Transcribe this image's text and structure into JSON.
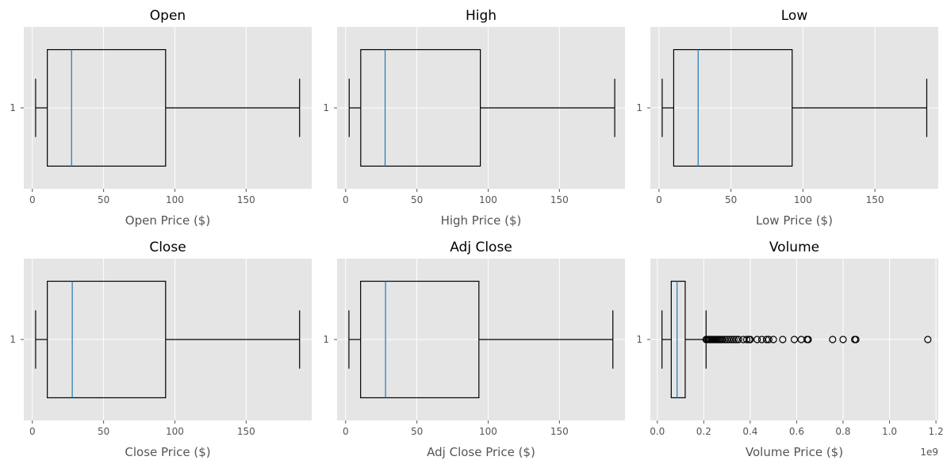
{
  "chart_data": [
    {
      "type": "boxplot",
      "title": "Open",
      "xlabel": "Open Price ($)",
      "category_label": "1",
      "xlim": [
        -6,
        196
      ],
      "xticks": [
        0,
        50,
        100,
        150
      ],
      "stats": {
        "whislo": 2.3,
        "q1": 10.5,
        "med": 27.5,
        "q3": 93.5,
        "whishi": 187.5
      },
      "fliers": []
    },
    {
      "type": "boxplot",
      "title": "High",
      "xlabel": "High Price ($)",
      "category_label": "1",
      "xlim": [
        -6,
        196
      ],
      "xticks": [
        0,
        50,
        100,
        150
      ],
      "stats": {
        "whislo": 2.5,
        "q1": 10.6,
        "med": 27.7,
        "q3": 94.5,
        "whishi": 188.8
      },
      "fliers": []
    },
    {
      "type": "boxplot",
      "title": "Low",
      "xlabel": "Low Price ($)",
      "category_label": "1",
      "xlim": [
        -6,
        194
      ],
      "xticks": [
        0,
        50,
        100,
        150
      ],
      "stats": {
        "whislo": 2.2,
        "q1": 10.2,
        "med": 27.2,
        "q3": 92.5,
        "whishi": 186.0
      },
      "fliers": []
    },
    {
      "type": "boxplot",
      "title": "Close",
      "xlabel": "Close Price ($)",
      "category_label": "1",
      "xlim": [
        -6,
        196
      ],
      "xticks": [
        0,
        50,
        100,
        150
      ],
      "stats": {
        "whislo": 2.3,
        "q1": 10.5,
        "med": 28.0,
        "q3": 93.5,
        "whishi": 187.5
      },
      "fliers": []
    },
    {
      "type": "boxplot",
      "title": "Adj Close",
      "xlabel": "Adj Close Price ($)",
      "category_label": "1",
      "xlim": [
        -6,
        196
      ],
      "xticks": [
        0,
        50,
        100,
        150
      ],
      "stats": {
        "whislo": 2.3,
        "q1": 10.5,
        "med": 28.0,
        "q3": 93.5,
        "whishi": 187.5
      },
      "fliers": []
    },
    {
      "type": "boxplot",
      "title": "Volume",
      "xlabel": "Volume Price ($)",
      "category_label": "1",
      "offset_text": "1e9",
      "xlim": [
        -0.03,
        1.21
      ],
      "xticks": [
        0.0,
        0.2,
        0.4,
        0.6,
        0.8,
        1.0,
        1.2
      ],
      "xticklabels": [
        "0.0",
        "0.2",
        "0.4",
        "0.6",
        "0.8",
        "1.0",
        "1.2"
      ],
      "stats": {
        "whislo": 0.02,
        "q1": 0.06,
        "med": 0.085,
        "q3": 0.12,
        "whishi": 0.21
      },
      "fliers": [
        0.21,
        0.215,
        0.22,
        0.225,
        0.23,
        0.235,
        0.24,
        0.245,
        0.25,
        0.255,
        0.26,
        0.265,
        0.27,
        0.275,
        0.28,
        0.29,
        0.3,
        0.31,
        0.32,
        0.33,
        0.34,
        0.35,
        0.37,
        0.385,
        0.395,
        0.4,
        0.43,
        0.45,
        0.47,
        0.48,
        0.5,
        0.54,
        0.59,
        0.62,
        0.645,
        0.65,
        0.755,
        0.8,
        0.85,
        0.855,
        1.165
      ]
    }
  ]
}
